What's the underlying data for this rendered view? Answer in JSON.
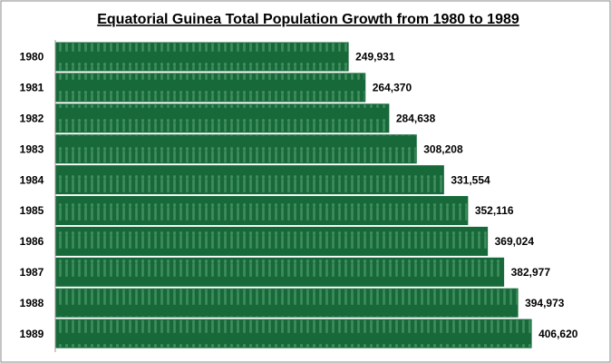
{
  "chart_data": {
    "type": "hbar",
    "title": "Equatorial Guinea Total Population Growth from 1980 to 1989",
    "categories": [
      "1980",
      "1981",
      "1982",
      "1983",
      "1984",
      "1985",
      "1986",
      "1987",
      "1988",
      "1989"
    ],
    "values": [
      249931,
      264370,
      284638,
      308208,
      331554,
      352116,
      369024,
      382977,
      394973,
      406620
    ],
    "value_labels": [
      "249,931",
      "264,370",
      "284,638",
      "308,208",
      "331,554",
      "352,116",
      "369,024",
      "382,977",
      "394,973",
      "406,620"
    ],
    "color": "#17693a",
    "xlim": [
      0,
      450000
    ]
  }
}
